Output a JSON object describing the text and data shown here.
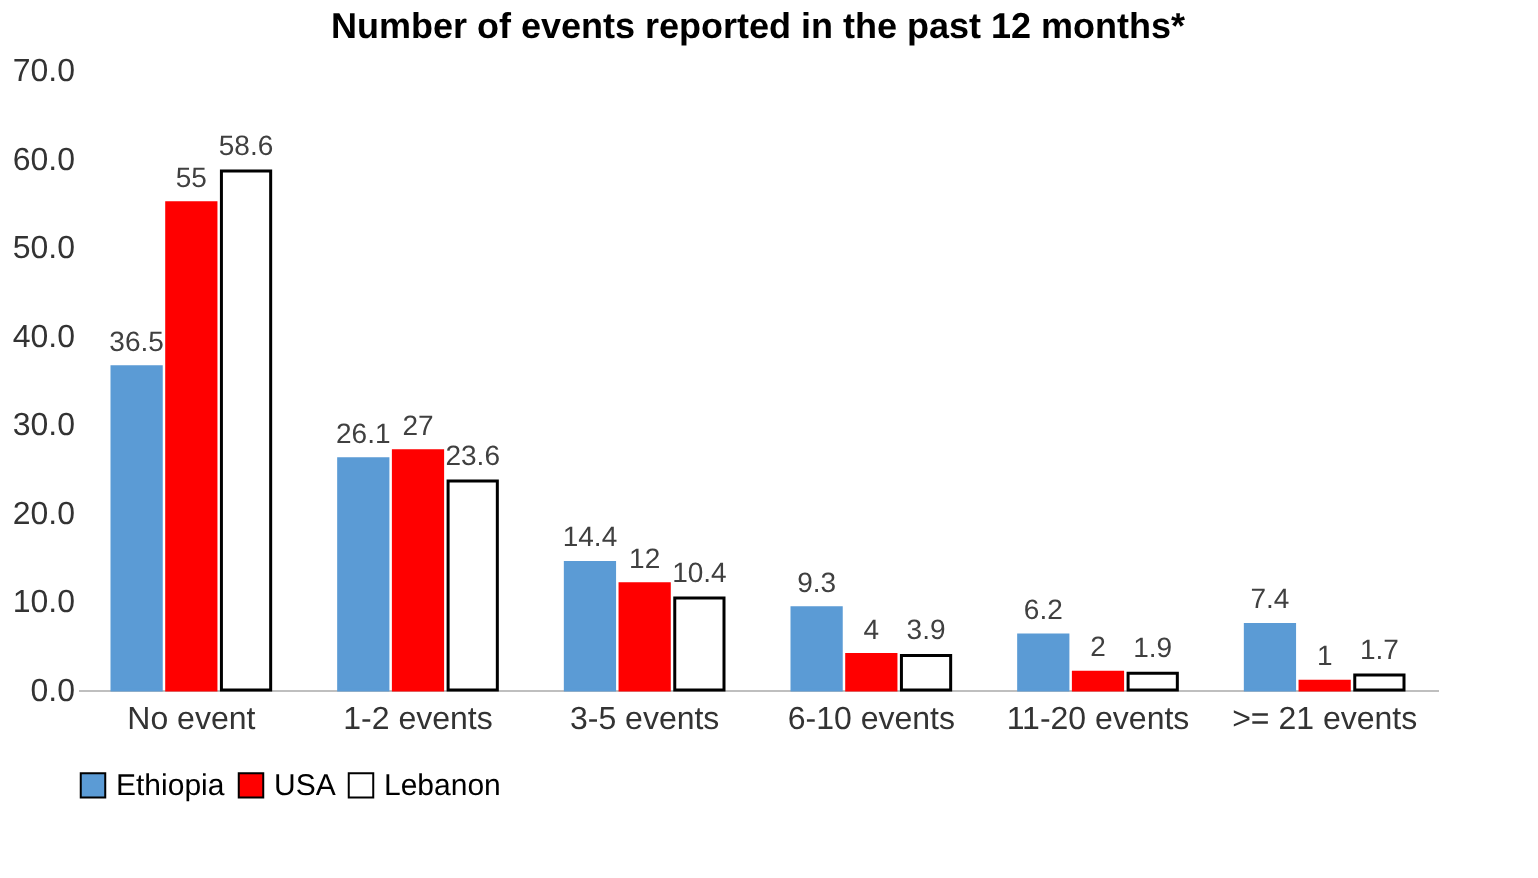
{
  "chart_data": {
    "type": "bar",
    "title": "Number of events reported in the past 12 months*",
    "categories": [
      "No event",
      "1-2 events",
      "3-5 events",
      "6-10 events",
      "11-20 events",
      ">= 21 events"
    ],
    "series": [
      {
        "name": "Ethiopia",
        "color": "#5b9bd5",
        "values": [
          36.5,
          26.1,
          14.4,
          9.3,
          6.2,
          7.4
        ]
      },
      {
        "name": "USA",
        "color": "#ff0000",
        "values": [
          55,
          27,
          12,
          4,
          2,
          1
        ]
      },
      {
        "name": "Lebanon",
        "color": "#ffffff",
        "values": [
          58.6,
          23.6,
          10.4,
          3.9,
          1.9,
          1.7
        ]
      }
    ],
    "ylim": [
      0,
      70
    ],
    "yticks": [
      {
        "value": 0,
        "label": "0.0"
      },
      {
        "value": 10,
        "label": "10.0"
      },
      {
        "value": 20,
        "label": "20.0"
      },
      {
        "value": 30,
        "label": "30.0"
      },
      {
        "value": 40,
        "label": "40.0"
      },
      {
        "value": 50,
        "label": "50.0"
      },
      {
        "value": 60,
        "label": "60.0"
      },
      {
        "value": 70,
        "label": "70.0"
      }
    ],
    "grid": false,
    "legend": "bottom",
    "data_labels": true
  }
}
